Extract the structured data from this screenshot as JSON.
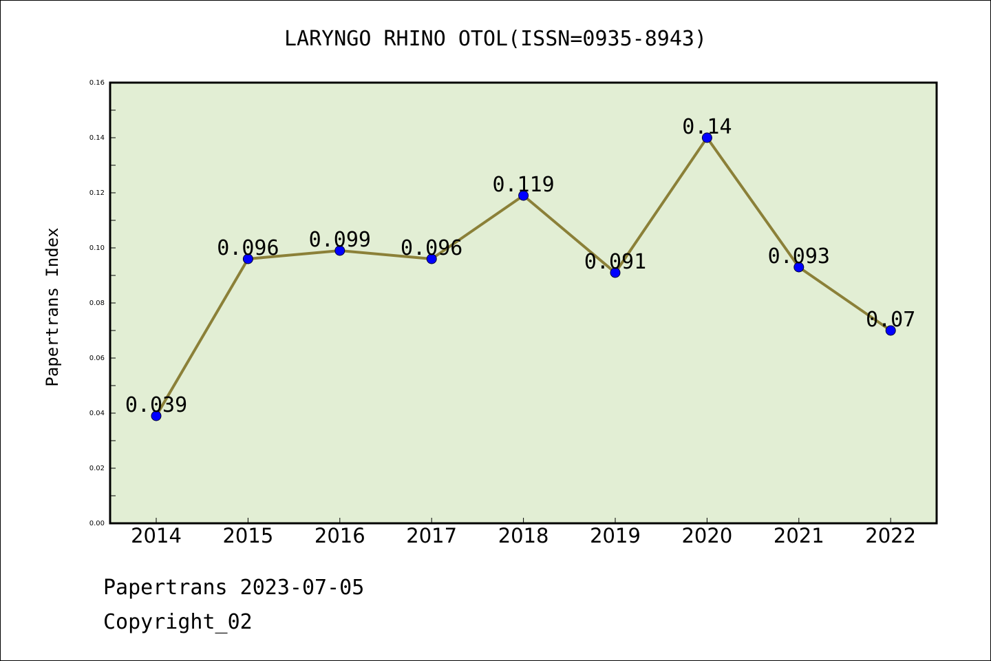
{
  "chart_data": {
    "type": "line",
    "title": "LARYNGO RHINO OTOL(ISSN=0935-8943)",
    "xlabel": "",
    "ylabel": "Papertrans Index",
    "categories": [
      "2014",
      "2015",
      "2016",
      "2017",
      "2018",
      "2019",
      "2020",
      "2021",
      "2022"
    ],
    "values": [
      0.039,
      0.096,
      0.099,
      0.096,
      0.119,
      0.091,
      0.14,
      0.093,
      0.07
    ],
    "data_labels": [
      "0.039",
      "0.096",
      "0.099",
      "0.096",
      "0.119",
      "0.091",
      "0.14",
      "0.093",
      "0.07"
    ],
    "ylim": [
      0,
      0.16
    ],
    "y_ticks": [
      "0.00",
      "0.02",
      "0.04",
      "0.06",
      "0.08",
      "0.10",
      "0.12",
      "0.14",
      "0.16"
    ],
    "grid": false,
    "legend": "none",
    "colors": {
      "plot_background": "#e2eed4",
      "line": "#8b8038",
      "marker": "#0000ff",
      "axes": "#000000"
    }
  },
  "footer": {
    "date_text": "Papertrans 2023-07-05",
    "copyright_text": "Copyright_02"
  }
}
